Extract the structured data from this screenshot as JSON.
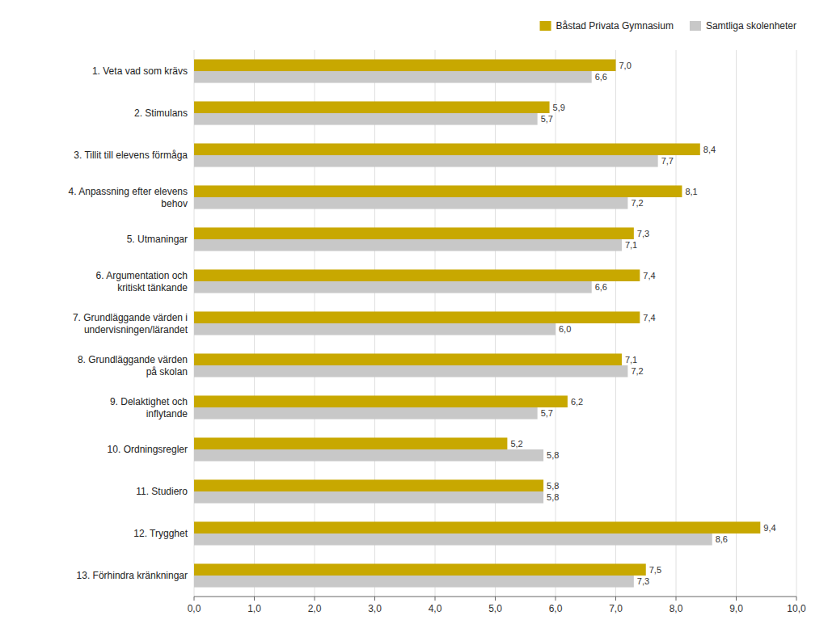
{
  "chart_data": {
    "type": "bar",
    "orientation": "horizontal",
    "categories": [
      "1. Veta vad som krävs",
      "2. Stimulans",
      "3. Tillit till elevens förmåga",
      "4. Anpassning efter elevens\nbehov",
      "5. Utmaningar",
      "6. Argumentation och\nkritiskt tänkande",
      "7. Grundläggande värden i\nundervisningen/lärandet",
      "8. Grundläggande värden\npå skolan",
      "9. Delaktighet och\ninflytande",
      "10. Ordningsregler",
      "11. Studiero",
      "12. Trygghet",
      "13. Förhindra kränkningar"
    ],
    "series": [
      {
        "name": "Båstad Privata Gymnasium",
        "color": "#C8A800",
        "values": [
          7.0,
          5.9,
          8.4,
          8.1,
          7.3,
          7.4,
          7.4,
          7.1,
          6.2,
          5.2,
          5.8,
          9.4,
          7.5
        ],
        "value_labels": [
          "7,0",
          "5,9",
          "8,4",
          "8,1",
          "7,3",
          "7,4",
          "7,4",
          "7,1",
          "6,2",
          "5,2",
          "5,8",
          "9,4",
          "7,5"
        ]
      },
      {
        "name": "Samtliga skolenheter",
        "color": "#C8C8C8",
        "values": [
          6.6,
          5.7,
          7.7,
          7.2,
          7.1,
          6.6,
          6.0,
          7.2,
          5.7,
          5.8,
          5.8,
          8.6,
          7.3
        ],
        "value_labels": [
          "6,6",
          "5,7",
          "7,7",
          "7,2",
          "7,1",
          "6,6",
          "6,0",
          "7,2",
          "5,7",
          "5,8",
          "5,8",
          "8,6",
          "7,3"
        ]
      }
    ],
    "xlim": [
      0,
      10
    ],
    "xticks": [
      {
        "value": 0.0,
        "label": "0,0"
      },
      {
        "value": 1.0,
        "label": "1,0"
      },
      {
        "value": 2.0,
        "label": "2,0"
      },
      {
        "value": 3.0,
        "label": "3,0"
      },
      {
        "value": 4.0,
        "label": "4,0"
      },
      {
        "value": 5.0,
        "label": "5,0"
      },
      {
        "value": 6.0,
        "label": "6,0"
      },
      {
        "value": 7.0,
        "label": "7,0"
      },
      {
        "value": 8.0,
        "label": "8,0"
      },
      {
        "value": 9.0,
        "label": "9,0"
      },
      {
        "value": 10.0,
        "label": "10,0"
      }
    ],
    "grid": true,
    "data_labels": true,
    "legend": "top-right"
  }
}
